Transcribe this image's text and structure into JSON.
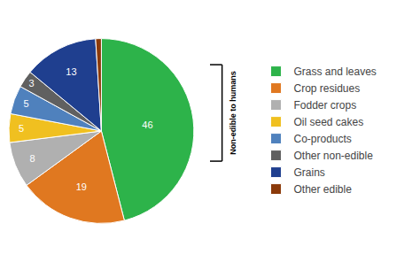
{
  "chart_data": {
    "type": "pie",
    "categories": [
      "Grass and leaves",
      "Crop residues",
      "Fodder crops",
      "Oil seed cakes",
      "Co-products",
      "Other non-edible",
      "Grains",
      "Other edible"
    ],
    "values": [
      46,
      19,
      8,
      5,
      5,
      3,
      13,
      1
    ],
    "colors": [
      "#2db34a",
      "#e07820",
      "#b0b0b0",
      "#f0c020",
      "#4f81bd",
      "#606060",
      "#1f3f8f",
      "#8B3A0A"
    ],
    "value_labels": [
      "46",
      "19",
      "8",
      "5",
      "5",
      "3",
      "13",
      null
    ],
    "data_labels": true,
    "legend": "right",
    "annotations": [
      {
        "text": "Non-edible to humans",
        "from": "Grass and leaves",
        "to": "Other non-edible"
      }
    ]
  }
}
